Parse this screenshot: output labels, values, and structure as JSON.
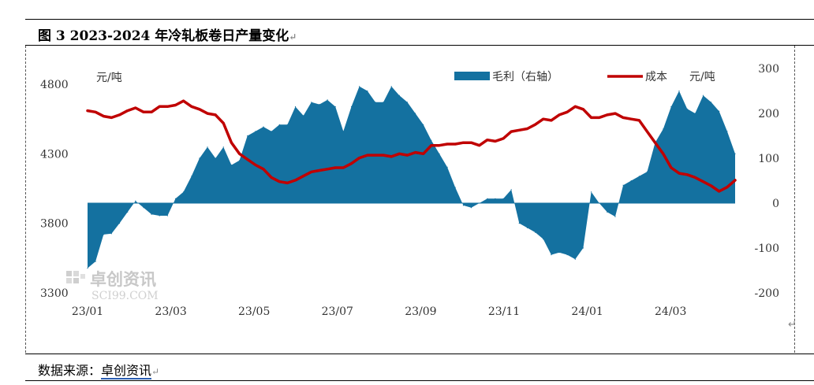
{
  "header": {
    "title": "图 3 2023-2024 年冷轧板卷日产量变化",
    "title_mark": "↵"
  },
  "footer": {
    "source_label": "数据来源：",
    "source_name": "卓创资讯",
    "source_mark": "↵"
  },
  "corner_mark": "↵",
  "watermark": {
    "text": "卓创资讯",
    "sub": "SCI99.COM"
  },
  "chart_data": {
    "type": "area+line",
    "left_unit": "元/吨",
    "right_unit": "元/吨",
    "x_tick_labels": [
      "23/01",
      "23/03",
      "23/05",
      "23/07",
      "23/09",
      "23/11",
      "24/01",
      "24/03"
    ],
    "y_left": {
      "range": [
        3300,
        4800
      ],
      "ticks": [
        3300,
        3800,
        4300,
        4800
      ]
    },
    "y_right": {
      "range": [
        -200,
        300
      ],
      "ticks": [
        -200,
        -100,
        0,
        100,
        200,
        300
      ]
    },
    "legend": {
      "placement": "top-right"
    },
    "colors": {
      "area": "#1471a0",
      "line": "#c00000"
    },
    "series": [
      {
        "name": "毛利（右轴）",
        "axis": "right",
        "kind": "area",
        "values": [
          -145,
          -130,
          -70,
          -68,
          -45,
          -20,
          5,
          -10,
          -25,
          -28,
          -28,
          10,
          25,
          60,
          100,
          125,
          100,
          125,
          85,
          95,
          150,
          160,
          170,
          160,
          175,
          175,
          215,
          195,
          225,
          220,
          230,
          215,
          160,
          215,
          260,
          250,
          225,
          225,
          260,
          240,
          225,
          200,
          175,
          140,
          110,
          80,
          35,
          -5,
          -10,
          0,
          10,
          10,
          10,
          30,
          -45,
          -55,
          -65,
          -80,
          -115,
          -110,
          -115,
          -125,
          -100,
          25,
          0,
          -20,
          -30,
          40,
          50,
          60,
          70,
          135,
          165,
          215,
          250,
          210,
          200,
          240,
          225,
          205,
          160,
          110
        ]
      },
      {
        "name": "成本",
        "axis": "left",
        "kind": "line",
        "values": [
          4610,
          4600,
          4570,
          4560,
          4580,
          4610,
          4630,
          4600,
          4600,
          4640,
          4640,
          4650,
          4680,
          4640,
          4620,
          4590,
          4580,
          4520,
          4380,
          4300,
          4260,
          4220,
          4190,
          4130,
          4100,
          4090,
          4110,
          4140,
          4170,
          4180,
          4190,
          4200,
          4200,
          4230,
          4270,
          4290,
          4290,
          4290,
          4280,
          4300,
          4290,
          4310,
          4300,
          4360,
          4360,
          4370,
          4370,
          4380,
          4380,
          4360,
          4400,
          4390,
          4410,
          4460,
          4470,
          4480,
          4510,
          4550,
          4540,
          4580,
          4600,
          4640,
          4620,
          4560,
          4560,
          4580,
          4590,
          4560,
          4550,
          4540,
          4460,
          4380,
          4300,
          4200,
          4160,
          4150,
          4130,
          4100,
          4070,
          4030,
          4060,
          4110
        ]
      }
    ]
  }
}
